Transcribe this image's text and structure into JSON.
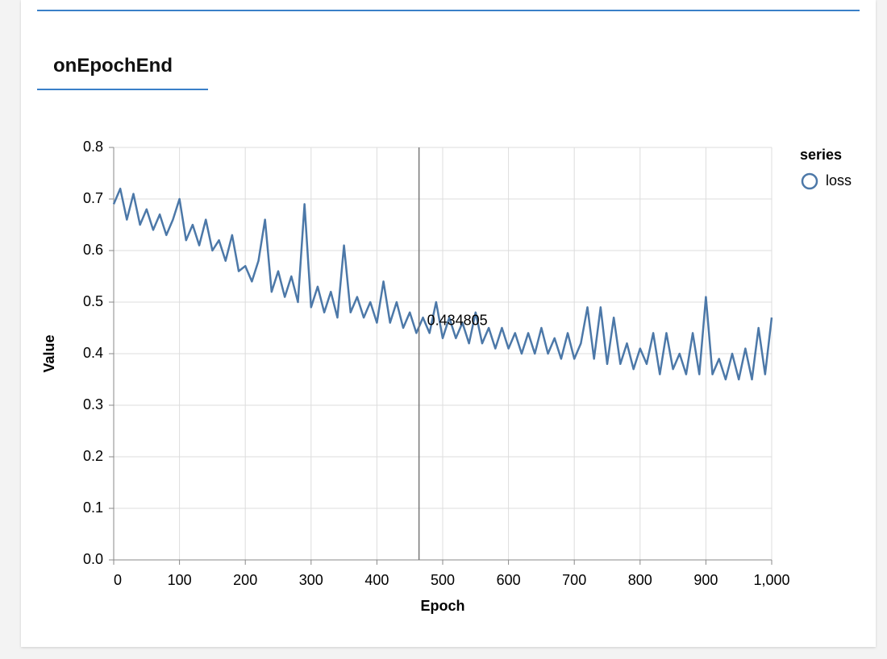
{
  "tab": {
    "title": "onEpochEnd"
  },
  "chart_data": {
    "type": "line",
    "x_label": "Epoch",
    "y_label": "Value",
    "x": [
      0,
      10,
      20,
      30,
      40,
      50,
      60,
      70,
      80,
      90,
      100,
      110,
      120,
      130,
      140,
      150,
      160,
      170,
      180,
      190,
      200,
      210,
      220,
      230,
      240,
      250,
      260,
      270,
      280,
      290,
      300,
      310,
      320,
      330,
      340,
      350,
      360,
      370,
      380,
      390,
      400,
      410,
      420,
      430,
      440,
      450,
      460,
      470,
      480,
      490,
      500,
      510,
      520,
      530,
      540,
      550,
      560,
      570,
      580,
      590,
      600,
      610,
      620,
      630,
      640,
      650,
      660,
      670,
      680,
      690,
      700,
      710,
      720,
      730,
      740,
      750,
      760,
      770,
      780,
      790,
      800,
      810,
      820,
      830,
      840,
      850,
      860,
      870,
      880,
      890,
      900,
      910,
      920,
      930,
      940,
      950,
      960,
      970,
      980,
      990,
      1000
    ],
    "series": [
      {
        "name": "loss",
        "color": "#4c78a8",
        "values": [
          0.69,
          0.72,
          0.66,
          0.71,
          0.65,
          0.68,
          0.64,
          0.67,
          0.63,
          0.66,
          0.7,
          0.62,
          0.65,
          0.61,
          0.66,
          0.6,
          0.62,
          0.58,
          0.63,
          0.56,
          0.57,
          0.54,
          0.58,
          0.66,
          0.52,
          0.56,
          0.51,
          0.55,
          0.5,
          0.69,
          0.49,
          0.53,
          0.48,
          0.52,
          0.47,
          0.61,
          0.48,
          0.51,
          0.47,
          0.5,
          0.46,
          0.54,
          0.46,
          0.5,
          0.45,
          0.48,
          0.44,
          0.47,
          0.44,
          0.5,
          0.43,
          0.47,
          0.43,
          0.46,
          0.42,
          0.48,
          0.42,
          0.45,
          0.41,
          0.45,
          0.41,
          0.44,
          0.4,
          0.44,
          0.4,
          0.45,
          0.4,
          0.43,
          0.39,
          0.44,
          0.39,
          0.42,
          0.49,
          0.39,
          0.49,
          0.38,
          0.47,
          0.38,
          0.42,
          0.37,
          0.41,
          0.38,
          0.44,
          0.36,
          0.44,
          0.37,
          0.4,
          0.36,
          0.44,
          0.36,
          0.51,
          0.36,
          0.39,
          0.35,
          0.4,
          0.35,
          0.41,
          0.35,
          0.45,
          0.36,
          0.47
        ]
      }
    ],
    "xlim": [
      0,
      1000
    ],
    "xticks": [
      0,
      100,
      200,
      300,
      400,
      500,
      600,
      700,
      800,
      900,
      {
        "value": 1000,
        "label": "1,000"
      }
    ],
    "ylim": [
      0,
      0.8
    ],
    "yticks": [
      {
        "value": 0,
        "label": "0.0"
      },
      0.1,
      0.2,
      0.3,
      0.4,
      0.5,
      0.6,
      0.7,
      0.8
    ],
    "grid": true,
    "legend_title": "series",
    "legend": "right",
    "hover": {
      "x": 464,
      "value": 0.434805
    }
  }
}
